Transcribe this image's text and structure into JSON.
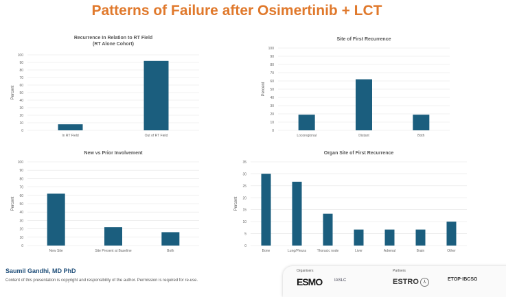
{
  "title": "Patterns of Failure after Osimertinib + LCT",
  "chart_data": [
    {
      "type": "bar",
      "title": "Recurrence In Relation to RT Field",
      "subtitle": "(RT Alone Cohort)",
      "ylabel": "Percent",
      "xlabel": "",
      "ylim": [
        0,
        100
      ],
      "ystep": 10,
      "categories": [
        "In RT Field",
        "Out of RT Field"
      ],
      "values": [
        8,
        92
      ],
      "color": "#1b5e7e",
      "grid": true
    },
    {
      "type": "bar",
      "title": "Site of First Recurrence",
      "subtitle": "",
      "ylabel": "Percent",
      "xlabel": "",
      "ylim": [
        0,
        100
      ],
      "ystep": 10,
      "categories": [
        "Locoregional",
        "Distant",
        "Both"
      ],
      "values": [
        19,
        62,
        19
      ],
      "color": "#1b5e7e",
      "grid": true
    },
    {
      "type": "bar",
      "title": "New vs Prior Involvement",
      "subtitle": "",
      "ylabel": "Percent",
      "xlabel": "",
      "ylim": [
        0,
        100
      ],
      "ystep": 10,
      "categories": [
        "New Site",
        "Site Present at Baseline",
        "Both"
      ],
      "values": [
        62,
        22,
        16
      ],
      "color": "#1b5e7e",
      "grid": true
    },
    {
      "type": "bar",
      "title": "Organ Site of First Recurrence",
      "subtitle": "",
      "ylabel": "Percent",
      "xlabel": "",
      "ylim": [
        0,
        35
      ],
      "ystep": 5,
      "categories": [
        "Bone",
        "Lung/Pleura",
        "Thoracic node",
        "Liver",
        "Adrenal",
        "Brain",
        "Other"
      ],
      "values": [
        30,
        26.7,
        13.3,
        6.7,
        6.7,
        6.7,
        10
      ],
      "color": "#1b5e7e",
      "grid": true
    }
  ],
  "footer": {
    "author": "Saumil Gandhi, MD PhD",
    "copyright": "Content of this presentation is copyright and responsibility of the author. Permission is required for re-use.",
    "organisers_label": "Organisers",
    "partners_label": "Partners",
    "logos": [
      "ESMO",
      "IASLC",
      "ESTRO",
      "ETOP·IBCSG"
    ]
  }
}
